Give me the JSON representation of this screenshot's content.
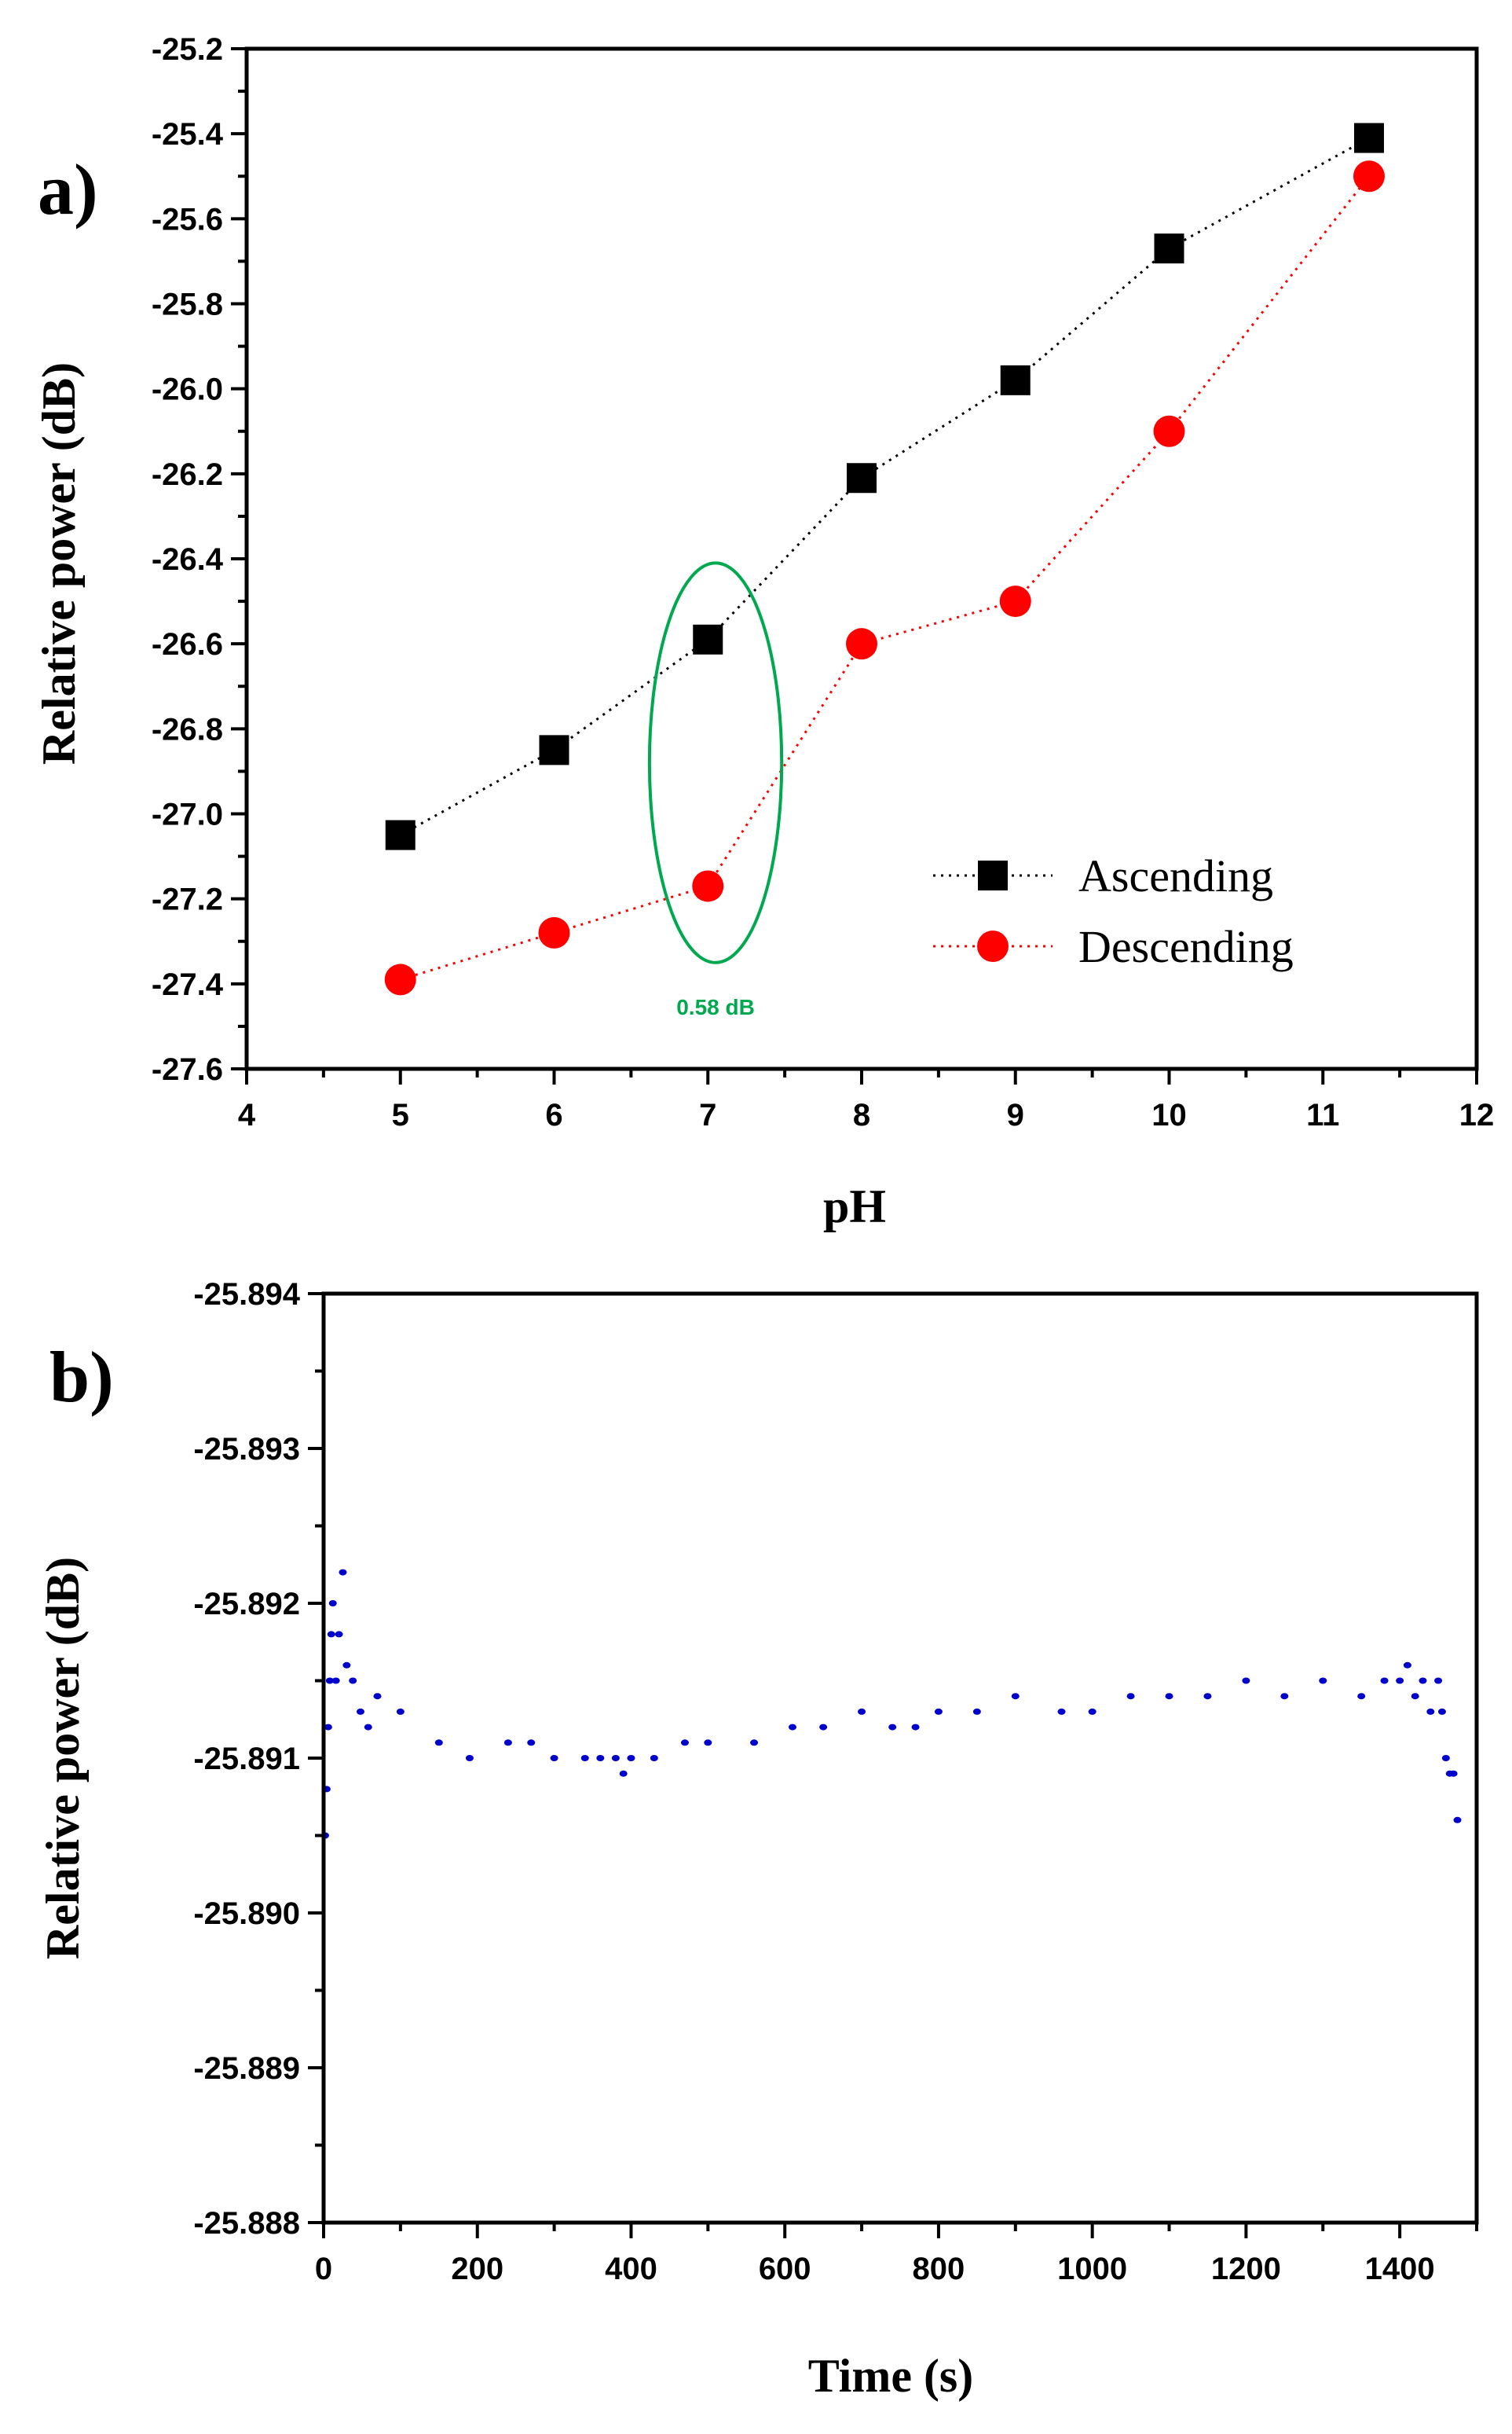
{
  "chart_data": [
    {
      "type": "line",
      "panel_label": "a)",
      "xlabel": "pH",
      "ylabel": "Relative power (dB)",
      "xlim": [
        4,
        12
      ],
      "ylim": [
        -27.6,
        -25.2
      ],
      "xticks": [
        "4",
        "5",
        "6",
        "7",
        "8",
        "9",
        "10",
        "11",
        "12"
      ],
      "yticks": [
        "-25.2",
        "-25.4",
        "-25.6",
        "-25.8",
        "-26.0",
        "-26.2",
        "-26.4",
        "-26.6",
        "-26.8",
        "-27.0",
        "-27.2",
        "-27.4",
        "-27.6"
      ],
      "grid": false,
      "legend_position": "lower-right",
      "series": [
        {
          "name": "Ascending",
          "color": "#000000",
          "marker": "square",
          "line_style": "dotted",
          "x": [
            5,
            6,
            7,
            8,
            9,
            10,
            11.3
          ],
          "y": [
            -27.05,
            -26.85,
            -26.59,
            -26.21,
            -25.98,
            -25.67,
            -25.41
          ]
        },
        {
          "name": "Descending",
          "color": "#ff0000",
          "marker": "circle",
          "line_style": "dotted",
          "x": [
            5,
            6,
            7,
            8,
            9,
            10,
            11.3
          ],
          "y": [
            -27.39,
            -27.28,
            -27.17,
            -26.6,
            -26.5,
            -26.1,
            -25.5
          ]
        }
      ],
      "annotations": [
        {
          "text": "0.58 dB",
          "color": "#00a94f",
          "shape": "ellipse",
          "center": [
            7.05,
            -26.88
          ],
          "semi_axes": [
            0.43,
            0.47
          ]
        }
      ]
    },
    {
      "type": "scatter",
      "panel_label": "b)",
      "xlabel": "Time (s)",
      "ylabel": "Relative power (dB)",
      "xlim": [
        0,
        1500
      ],
      "ylim": [
        -25.894,
        -25.888
      ],
      "y_axis_inverted": true,
      "xticks": [
        "0",
        "200",
        "400",
        "600",
        "800",
        "1000",
        "1200",
        "1400"
      ],
      "yticks": [
        "-25.894",
        "-25.893",
        "-25.892",
        "-25.891",
        "-25.890",
        "-25.889",
        "-25.888"
      ],
      "grid": false,
      "series": [
        {
          "color": "#0000cc",
          "marker": "dot",
          "x": [
            2,
            4,
            6,
            8,
            10,
            12,
            16,
            20,
            25,
            30,
            38,
            48,
            58,
            70,
            100,
            150,
            190,
            240,
            270,
            300,
            340,
            360,
            380,
            390,
            400,
            430,
            470,
            500,
            560,
            610,
            650,
            700,
            740,
            770,
            800,
            850,
            900,
            960,
            1000,
            1050,
            1100,
            1150,
            1200,
            1250,
            1300,
            1350,
            1380,
            1400,
            1410,
            1420,
            1430,
            1440,
            1450,
            1455,
            1460,
            1465,
            1470,
            1475
          ],
          "y": [
            -25.8905,
            -25.8908,
            -25.8912,
            -25.8915,
            -25.8918,
            -25.892,
            -25.8915,
            -25.8918,
            -25.8922,
            -25.8916,
            -25.8915,
            -25.8913,
            -25.8912,
            -25.8914,
            -25.8913,
            -25.8911,
            -25.891,
            -25.8911,
            -25.8911,
            -25.891,
            -25.891,
            -25.891,
            -25.891,
            -25.8909,
            -25.891,
            -25.891,
            -25.8911,
            -25.8911,
            -25.8911,
            -25.8912,
            -25.8912,
            -25.8913,
            -25.8912,
            -25.8912,
            -25.8913,
            -25.8913,
            -25.8914,
            -25.8913,
            -25.8913,
            -25.8914,
            -25.8914,
            -25.8914,
            -25.8915,
            -25.8914,
            -25.8915,
            -25.8914,
            -25.8915,
            -25.8915,
            -25.8916,
            -25.8914,
            -25.8915,
            -25.8913,
            -25.8915,
            -25.8913,
            -25.891,
            -25.8909,
            -25.8909,
            -25.8906
          ]
        }
      ]
    }
  ]
}
